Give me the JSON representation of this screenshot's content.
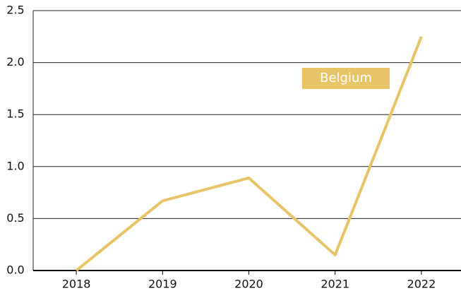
{
  "chart_data": {
    "type": "line",
    "categories": [
      "2018",
      "2019",
      "2020",
      "2021",
      "2022"
    ],
    "series": [
      {
        "name": "Belgium",
        "color": "#e8c468",
        "values": [
          0,
          0.67,
          0.89,
          0.15,
          2.25
        ]
      }
    ],
    "ylim": [
      0,
      2.5
    ],
    "yticks": [
      {
        "value": 0,
        "label": "0.0"
      },
      {
        "value": 0.5,
        "label": "0.5"
      },
      {
        "value": 1,
        "label": "1.0"
      },
      {
        "value": 1.5,
        "label": "1.5"
      },
      {
        "value": 2,
        "label": "2.0"
      },
      2.5
    ],
    "grid": true
  }
}
